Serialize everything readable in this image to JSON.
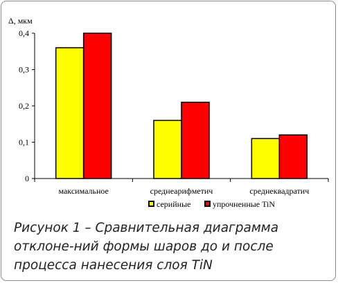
{
  "chart_data": {
    "type": "bar",
    "ylabel": "Δ, мкм",
    "categories": [
      "максимальное",
      "среднеарифметич",
      "среднеквадратич"
    ],
    "series": [
      {
        "name": "серийные",
        "values": [
          0.36,
          0.16,
          0.11
        ],
        "color": "#ffff00"
      },
      {
        "name": "упрочненные TiN",
        "values": [
          0.4,
          0.21,
          0.12
        ],
        "color": "#ff0000"
      }
    ],
    "ylim": [
      0,
      0.4
    ],
    "yticks": [
      0,
      0.1,
      0.2,
      0.3,
      0.4
    ],
    "ytick_labels": [
      "0",
      "0,1",
      "0,2",
      "0,3",
      "0,4"
    ],
    "grid": false,
    "legend_position": "bottom"
  },
  "caption": "Рисунок 1 – Сравнительная диаграмма отклоне-ний формы шаров до и после процесса нанесения слоя TiN"
}
